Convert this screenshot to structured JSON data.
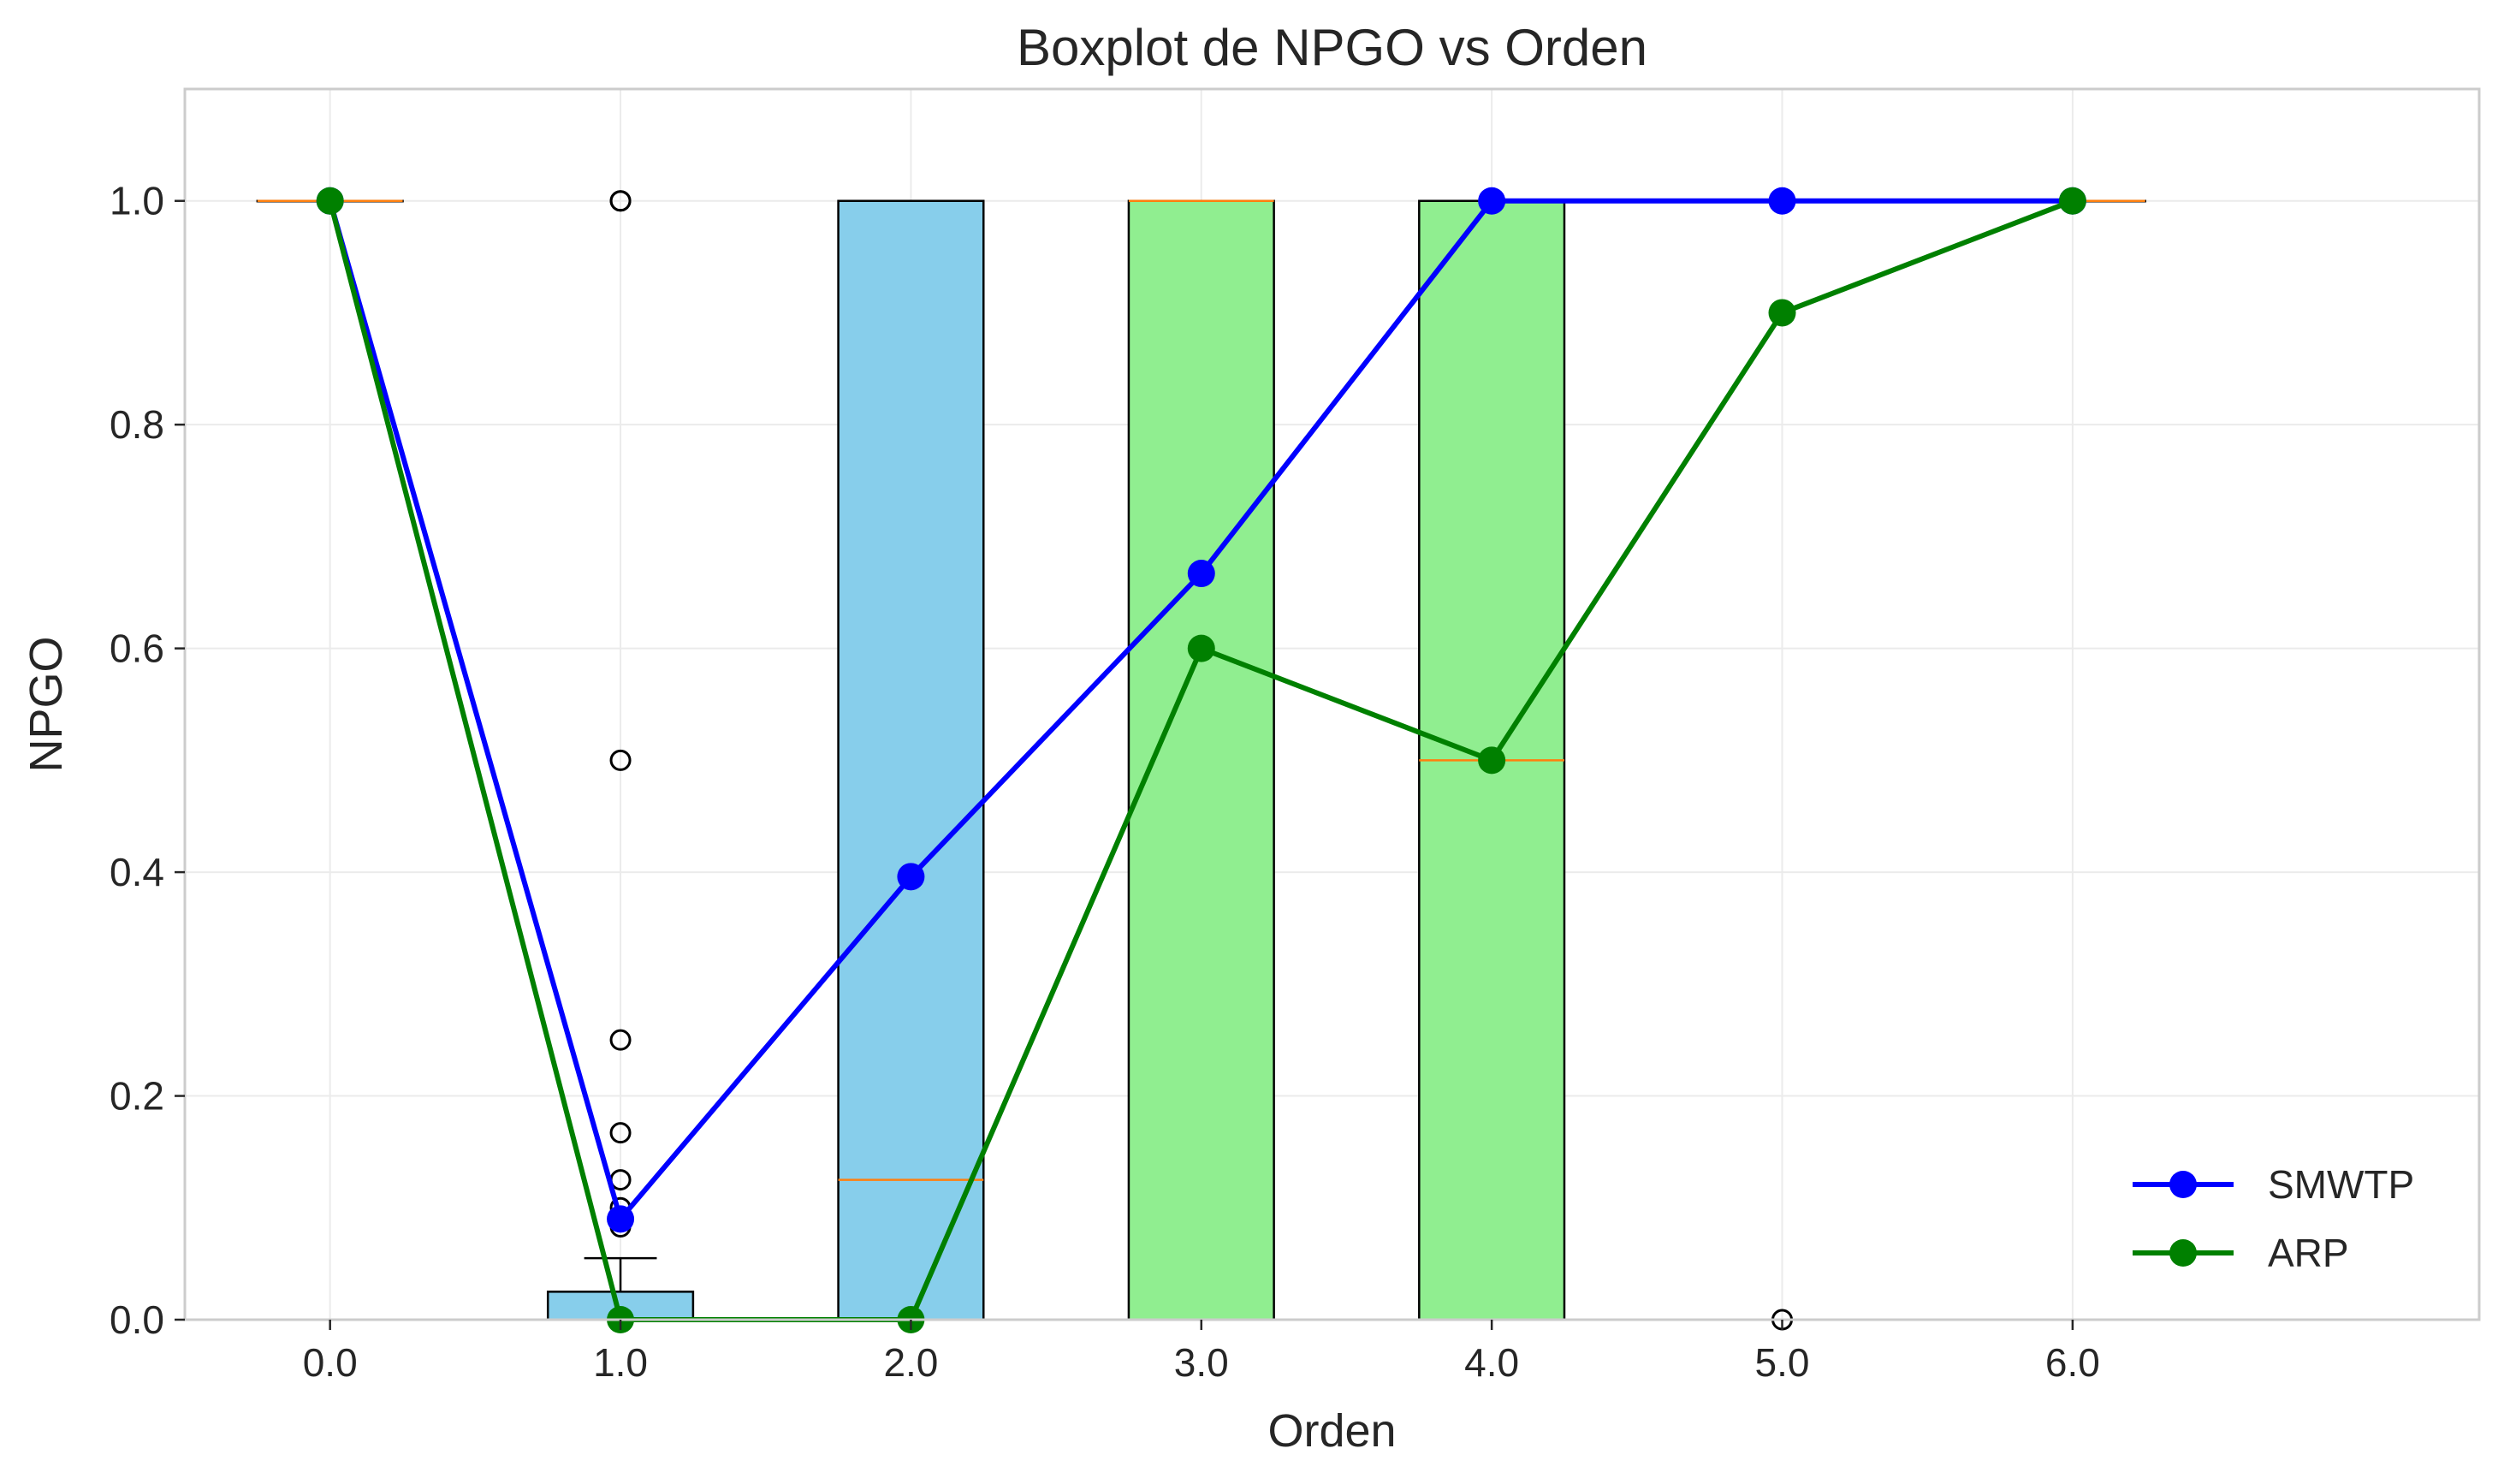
{
  "chart_data": {
    "type": "box",
    "title": "Boxplot de NPGO vs Orden",
    "xlabel": "Orden",
    "ylabel": "NPGO",
    "xlim": [
      -0.5,
      7.4
    ],
    "ylim": [
      0,
      1.1
    ],
    "x_ticks": [
      "0.0",
      "1.0",
      "2.0",
      "3.0",
      "4.0",
      "5.0",
      "6.0"
    ],
    "y_ticks": [
      "0.0",
      "0.2",
      "0.4",
      "0.6",
      "0.8",
      "1.0"
    ],
    "grid": true,
    "legend_position": "lower-right",
    "boxes": [
      {
        "x": 0,
        "q1": 1.0,
        "median": 1.0,
        "q3": 1.0,
        "whisker_low": 1.0,
        "whisker_high": 1.0,
        "color": "#87ceeb",
        "outliers": []
      },
      {
        "x": 1,
        "q1": 0.0,
        "median": 0.0,
        "q3": 0.025,
        "whisker_low": 0.0,
        "whisker_high": 0.055,
        "color": "#87ceeb",
        "outliers": [
          1.0,
          1.0,
          0.5,
          0.25,
          0.167,
          0.125,
          0.1,
          0.091,
          0.083
        ]
      },
      {
        "x": 2,
        "q1": 0.0,
        "median": 0.125,
        "q3": 1.0,
        "whisker_low": 0.0,
        "whisker_high": 1.0,
        "color": "#87ceeb",
        "outliers": []
      },
      {
        "x": 3,
        "q1": 0.0,
        "median": 1.0,
        "q3": 1.0,
        "whisker_low": 0.0,
        "whisker_high": 1.0,
        "color": "#90ee90",
        "outliers": []
      },
      {
        "x": 4,
        "q1": 0.0,
        "median": 0.5,
        "q3": 1.0,
        "whisker_low": 0.0,
        "whisker_high": 1.0,
        "color": "#90ee90",
        "outliers": []
      },
      {
        "x": 5,
        "q1": 1.0,
        "median": 1.0,
        "q3": 1.0,
        "whisker_low": 1.0,
        "whisker_high": 1.0,
        "color": "#87ceeb",
        "outliers": [
          0.0
        ]
      },
      {
        "x": 6,
        "q1": 1.0,
        "median": 1.0,
        "q3": 1.0,
        "whisker_low": 1.0,
        "whisker_high": 1.0,
        "color": "#90ee90",
        "outliers": []
      }
    ],
    "series": [
      {
        "name": "SMWTP",
        "color": "#0000ff",
        "x": [
          0,
          1,
          2,
          3,
          4,
          5,
          6
        ],
        "values": [
          1.0,
          0.09,
          0.396,
          0.667,
          1.0,
          1.0,
          1.0
        ]
      },
      {
        "name": "ARP",
        "color": "#008000",
        "x": [
          0,
          1,
          2,
          3,
          4,
          5,
          6
        ],
        "values": [
          1.0,
          0.0,
          0.0,
          0.6,
          0.5,
          0.9,
          1.0
        ]
      }
    ],
    "median_color": "#ff7f0e"
  }
}
